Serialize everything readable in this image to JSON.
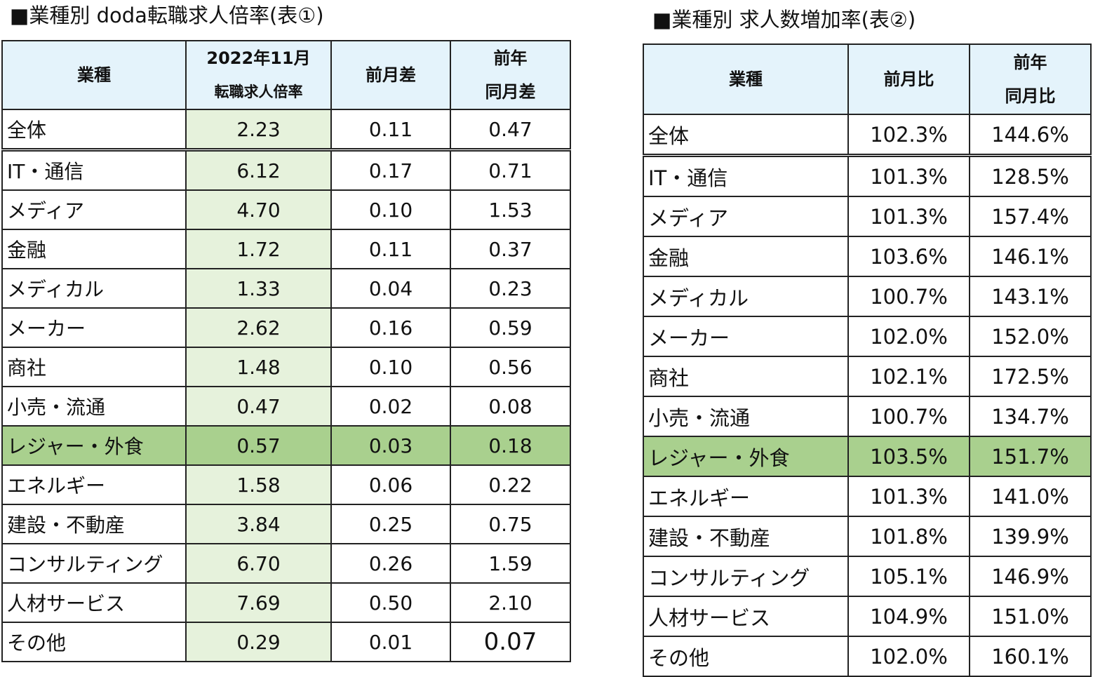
{
  "chart_data": [
    {
      "type": "table",
      "title": "■業種別 doda転職求人倍率(表①)",
      "columns": [
        "業種",
        "2022年11月",
        "転職求人倍率",
        "前月差",
        "前年",
        "同月差"
      ],
      "rows": [
        {
          "industry": "全体",
          "rate": "2.23",
          "mom": "0.11",
          "yoy": "0.47"
        },
        {
          "industry": "IT・通信",
          "rate": "6.12",
          "mom": "0.17",
          "yoy": "0.71"
        },
        {
          "industry": "メディア",
          "rate": "4.70",
          "mom": "0.10",
          "yoy": "1.53"
        },
        {
          "industry": "金融",
          "rate": "1.72",
          "mom": "0.11",
          "yoy": "0.37"
        },
        {
          "industry": "メディカル",
          "rate": "1.33",
          "mom": "0.04",
          "yoy": "0.23"
        },
        {
          "industry": "メーカー",
          "rate": "2.62",
          "mom": "0.16",
          "yoy": "0.59"
        },
        {
          "industry": "商社",
          "rate": "1.48",
          "mom": "0.10",
          "yoy": "0.56"
        },
        {
          "industry": "小売・流通",
          "rate": "0.47",
          "mom": "0.02",
          "yoy": "0.08"
        },
        {
          "industry": "レジャー・外食",
          "rate": "0.57",
          "mom": "0.03",
          "yoy": "0.18"
        },
        {
          "industry": "エネルギー",
          "rate": "1.58",
          "mom": "0.06",
          "yoy": "0.22"
        },
        {
          "industry": "建設・不動産",
          "rate": "3.84",
          "mom": "0.25",
          "yoy": "0.75"
        },
        {
          "industry": "コンサルティング",
          "rate": "6.70",
          "mom": "0.26",
          "yoy": "1.59"
        },
        {
          "industry": "人材サービス",
          "rate": "7.69",
          "mom": "0.50",
          "yoy": "2.10"
        },
        {
          "industry": "その他",
          "rate": "0.29",
          "mom": "0.01",
          "yoy": "0.07"
        }
      ],
      "highlight_row": "レジャー・外食"
    },
    {
      "type": "table",
      "title": "■業種別 求人数増加率(表②)",
      "columns": [
        "業種",
        "前月比",
        "前年",
        "同月比"
      ],
      "rows": [
        {
          "industry": "全体",
          "mom": "102.3%",
          "yoy": "144.6%"
        },
        {
          "industry": "IT・通信",
          "mom": "101.3%",
          "yoy": "128.5%"
        },
        {
          "industry": "メディア",
          "mom": "101.3%",
          "yoy": "157.4%"
        },
        {
          "industry": "金融",
          "mom": "103.6%",
          "yoy": "146.1%"
        },
        {
          "industry": "メディカル",
          "mom": "100.7%",
          "yoy": "143.1%"
        },
        {
          "industry": "メーカー",
          "mom": "102.0%",
          "yoy": "152.0%"
        },
        {
          "industry": "商社",
          "mom": "102.1%",
          "yoy": "172.5%"
        },
        {
          "industry": "小売・流通",
          "mom": "100.7%",
          "yoy": "134.7%"
        },
        {
          "industry": "レジャー・外食",
          "mom": "103.5%",
          "yoy": "151.7%"
        },
        {
          "industry": "エネルギー",
          "mom": "101.3%",
          "yoy": "141.0%"
        },
        {
          "industry": "建設・不動産",
          "mom": "101.8%",
          "yoy": "139.9%"
        },
        {
          "industry": "コンサルティング",
          "mom": "105.1%",
          "yoy": "146.9%"
        },
        {
          "industry": "人材サービス",
          "mom": "104.9%",
          "yoy": "151.0%"
        },
        {
          "industry": "その他",
          "mom": "102.0%",
          "yoy": "160.1%"
        }
      ],
      "highlight_row": "レジャー・外食"
    }
  ],
  "colors": {
    "header_bg": "#e4f3fb",
    "rate_column_bg": "#e6f2dc",
    "highlight_bg": "#a9d08e",
    "border": "#222222"
  }
}
